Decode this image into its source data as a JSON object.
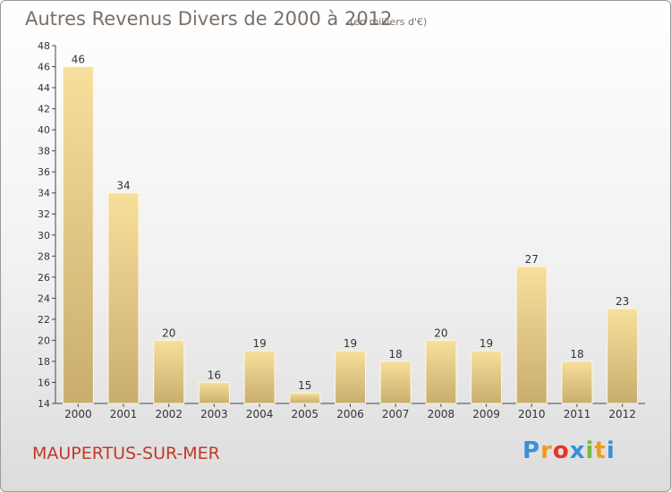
{
  "chart_data": {
    "type": "bar",
    "title": "Autres Revenus Divers de 2000 à 2012",
    "subtitle": "(en milliers d'€)",
    "categories": [
      "2000",
      "2001",
      "2002",
      "2003",
      "2004",
      "2005",
      "2006",
      "2007",
      "2008",
      "2009",
      "2010",
      "2011",
      "2012"
    ],
    "values": [
      46,
      34,
      20,
      16,
      19,
      15,
      19,
      18,
      20,
      19,
      27,
      18,
      23
    ],
    "ylim": [
      14,
      48
    ],
    "yticks": [
      14,
      16,
      18,
      20,
      22,
      24,
      26,
      28,
      30,
      32,
      34,
      36,
      38,
      40,
      42,
      44,
      46,
      48
    ],
    "grid": false,
    "bar_color_light": "#f7df9c",
    "bar_color_dark": "#c9ad6e"
  },
  "footer": {
    "place": "MAUPERTUS-SUR-MER",
    "brand": [
      "P",
      "r",
      "o",
      "x",
      "i",
      "t",
      "i"
    ],
    "brand_colors": [
      "#3a8fd8",
      "#f29a1e",
      "#e8312a",
      "#3a8fd8",
      "#7ab83c",
      "#f29a1e",
      "#3a8fd8"
    ]
  }
}
